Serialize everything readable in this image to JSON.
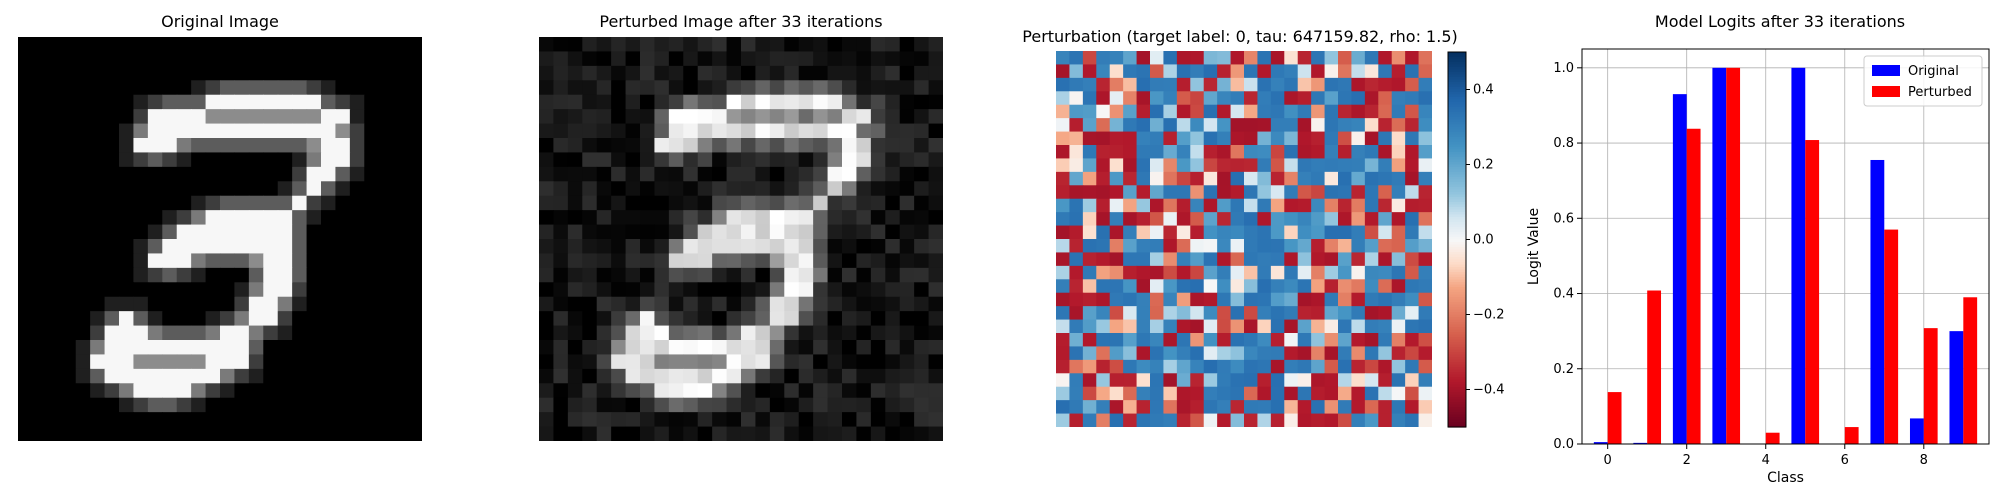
{
  "panels": {
    "original_title": "Original Image",
    "perturbed_title": "Perturbed Image after 33 iterations",
    "perturbation_title": "Perturbation (target label: 0, tau: 647159.82, rho: 1.5)",
    "logits_title": "Model Logits after 33 iterations"
  },
  "colors": {
    "original": "#0000ff",
    "perturbed": "#ff0000",
    "grid": "#b0b0b0"
  },
  "chart_data": [
    {
      "type": "image",
      "title": "Original Image",
      "colormap": "gray",
      "content": "handwritten digit 3 (28x28 grayscale)"
    },
    {
      "type": "image",
      "title": "Perturbed Image after 33 iterations",
      "colormap": "gray",
      "content": "perturbed handwritten digit 3 (28x28 grayscale)"
    },
    {
      "type": "heatmap",
      "title": "Perturbation (target label: 0, tau: 647159.82, rho: 1.5)",
      "colormap": "RdBu",
      "range": [
        -0.5,
        0.5
      ],
      "colorbar_ticks": [
        0.4,
        0.2,
        0.0,
        -0.2,
        -0.4
      ],
      "colorbar_tick_labels": [
        "0.4",
        "0.2",
        "0.0",
        "−0.2",
        "−0.4"
      ]
    },
    {
      "type": "bar",
      "title": "Model Logits after 33 iterations",
      "xlabel": "Class",
      "ylabel": "Logit Value",
      "categories": [
        0,
        1,
        2,
        3,
        4,
        5,
        6,
        7,
        8,
        9
      ],
      "xticks": [
        "0",
        "2",
        "4",
        "6",
        "8"
      ],
      "yticks": [
        "0.0",
        "0.2",
        "0.4",
        "0.6",
        "0.8",
        "1.0"
      ],
      "ylim": [
        0,
        1.05
      ],
      "grid": true,
      "legend": "top-right",
      "series": [
        {
          "name": "Original",
          "values": [
            0.005,
            0.003,
            0.93,
            1.0,
            0.0,
            1.0,
            0.0,
            0.755,
            0.068,
            0.3
          ]
        },
        {
          "name": "Perturbed",
          "values": [
            0.138,
            0.408,
            0.838,
            1.0,
            0.03,
            0.808,
            0.045,
            0.57,
            0.308,
            0.39
          ]
        }
      ]
    }
  ]
}
